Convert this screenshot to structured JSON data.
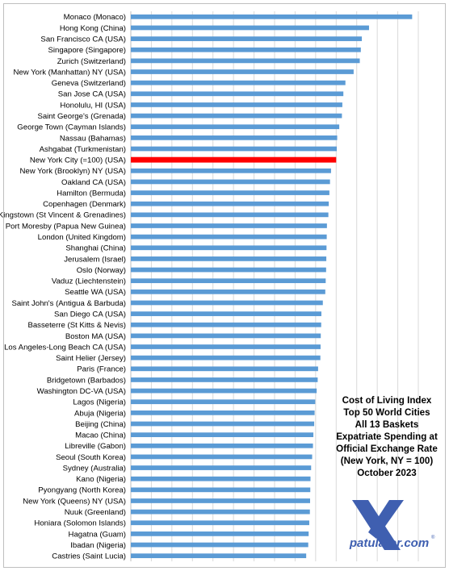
{
  "chart_data": {
    "type": "bar",
    "orientation": "horizontal",
    "title_lines": [
      "Cost of Living Index",
      "Top 50 World Cities",
      "All 13 Baskets",
      "Expatriate Spending  at",
      "Official Exchange Rate",
      "(New York, NY = 100)",
      "October 2023"
    ],
    "categories": [
      "Monaco (Monaco)",
      "Hong Kong (China)",
      "San Francisco CA (USA)",
      "Singapore (Singapore)",
      "Zurich (Switzerland)",
      "New York (Manhattan) NY (USA)",
      "Geneva (Switzerland)",
      "San Jose CA (USA)",
      "Honolulu, HI (USA)",
      "Saint George's (Grenada)",
      "George Town (Cayman Islands)",
      "Nassau (Bahamas)",
      "Ashgabat (Turkmenistan)",
      "New York City (=100) (USA)",
      "New York (Brooklyn) NY (USA)",
      "Oakland CA (USA)",
      "Hamilton (Bermuda)",
      "Copenhagen (Denmark)",
      "Kingstown (St Vincent & Grenadines)",
      "Port Moresby (Papua New Guinea)",
      "London (United Kingdom)",
      "Shanghai (China)",
      "Jerusalem (Israel)",
      "Oslo (Norway)",
      "Vaduz (Liechtenstein)",
      "Seattle WA (USA)",
      "Saint John's (Antigua & Barbuda)",
      "San Diego CA (USA)",
      "Basseterre (St Kitts & Nevis)",
      "Boston MA (USA)",
      "Los Angeles-Long Beach CA (USA)",
      "Saint Helier (Jersey)",
      "Paris (France)",
      "Bridgetown (Barbados)",
      "Washington DC-VA (USA)",
      "Lagos (Nigeria)",
      "Abuja (Nigeria)",
      "Beijing (China)",
      "Macao (China)",
      "Libreville (Gabon)",
      "Seoul (South Korea)",
      "Sydney (Australia)",
      "Kano (Nigeria)",
      "Pyongyang (North Korea)",
      "New York (Queens) NY (USA)",
      "Nuuk (Greenland)",
      "Honiara (Solomon Islands)",
      "Hagatna (Guam)",
      "Ibadan (Nigeria)",
      "Castries (Saint Lucia)"
    ],
    "values": [
      137,
      116,
      112.5,
      112,
      111.5,
      108.5,
      104.5,
      103.5,
      103,
      102.8,
      101.5,
      100.5,
      100.3,
      100,
      97.5,
      97,
      96.7,
      96.4,
      96.2,
      95.5,
      95.4,
      95.3,
      95.2,
      95.1,
      94.9,
      94.7,
      93.5,
      92.8,
      92.7,
      92.5,
      92.4,
      92.3,
      91.2,
      91,
      90.5,
      89.8,
      89.5,
      89.3,
      88.9,
      88.7,
      88.3,
      87.8,
      87.5,
      87.4,
      87.3,
      87.2,
      86.9,
      86.6,
      86.4,
      85.4
    ],
    "highlight_category": "New York City (=100) (USA)",
    "xlim": [
      0,
      140
    ],
    "grid": true,
    "colors": {
      "bar": "#5b9bd5",
      "highlight": "#ff0000",
      "grid": "#d9d9d9",
      "logo": "#3f5fb0"
    }
  },
  "logo": {
    "letter": "X",
    "text": "patulator.com",
    "mark": "®"
  }
}
